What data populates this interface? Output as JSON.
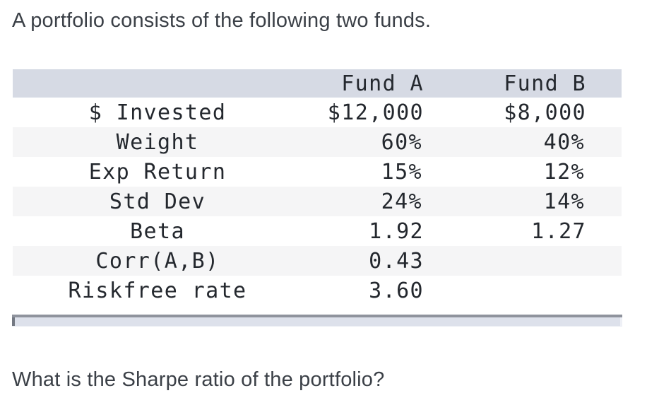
{
  "intro": "A portfolio consists of the following two funds.",
  "question": "What is the Sharpe ratio of the portfolio?",
  "table": {
    "columns": [
      "",
      "Fund A",
      "Fund B"
    ],
    "rows": [
      {
        "label": "$ Invested",
        "fund_a": "$12,000",
        "fund_b": "$8,000"
      },
      {
        "label": "Weight",
        "fund_a": "60%",
        "fund_b": "40%"
      },
      {
        "label": "Exp Return",
        "fund_a": "15%",
        "fund_b": "12%"
      },
      {
        "label": "Std Dev",
        "fund_a": "24%",
        "fund_b": "14%"
      },
      {
        "label": "Beta",
        "fund_a": "1.92",
        "fund_b": "1.27"
      },
      {
        "label": "Corr(A,B)",
        "fund_a": "0.43",
        "fund_b": ""
      },
      {
        "label": "Riskfree rate",
        "fund_a": "3.60",
        "fund_b": ""
      }
    ]
  },
  "colors": {
    "header_bg": "#d6dae4",
    "row_stripe_bg": "#f5f5f6",
    "table_text": "#24282e",
    "body_text": "#3b4047",
    "scrollbar_border": "#8f939d",
    "scrollbar_track": "#dde1eb"
  }
}
